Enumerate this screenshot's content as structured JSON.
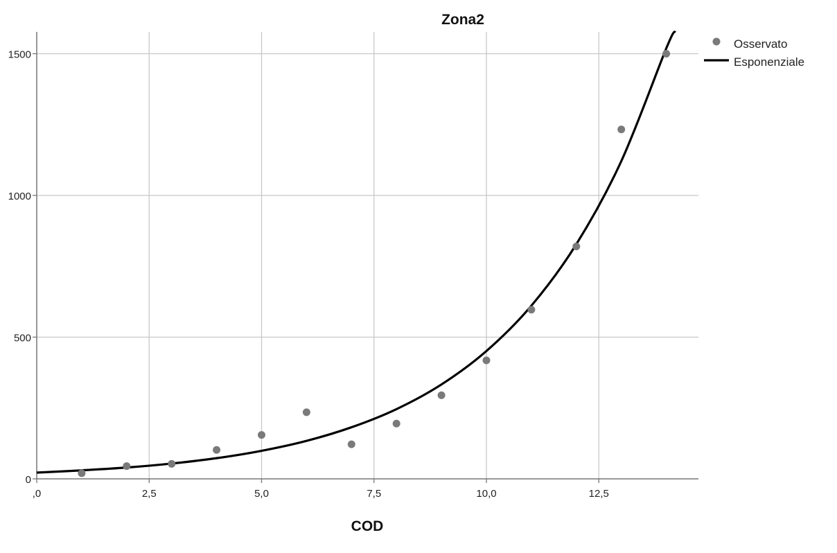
{
  "chart_data": {
    "type": "scatter",
    "title": "Zona2",
    "xlabel": "COD",
    "ylabel": "",
    "xlim": [
      0,
      14.7
    ],
    "ylim": [
      0,
      1580
    ],
    "x_ticks": [
      0,
      2.5,
      5,
      7.5,
      10,
      12.5
    ],
    "x_tick_labels": [
      ",0",
      "2,5",
      "5,0",
      "7,5",
      "10,0",
      "12,5"
    ],
    "y_ticks": [
      0,
      500,
      1000,
      1500
    ],
    "y_tick_labels": [
      "0",
      "500",
      "1000",
      "1500"
    ],
    "grid": true,
    "legend_position": "top-right",
    "colors": {
      "observed": "#7a7a7a",
      "fit": "#000000",
      "grid": "#c8c8c8",
      "axis": "#777777"
    },
    "series": [
      {
        "name": "Osservato",
        "kind": "points",
        "x": [
          1,
          2,
          3,
          4,
          5,
          6,
          7,
          8,
          9,
          10,
          11,
          12,
          13,
          14
        ],
        "y": [
          20,
          45,
          53,
          102,
          155,
          235,
          122,
          195,
          295,
          418,
          597,
          820,
          1233,
          1500
        ]
      },
      {
        "name": "Esponenziale",
        "kind": "curve",
        "x": [
          0,
          1,
          2,
          3,
          4,
          5,
          6,
          7,
          8,
          9,
          10,
          11,
          12,
          13,
          14,
          14.2
        ],
        "y": [
          22,
          30,
          40,
          54,
          73,
          99,
          134,
          182,
          246,
          333,
          451,
          611,
          828,
          1121,
          1519,
          1580
        ]
      }
    ]
  }
}
